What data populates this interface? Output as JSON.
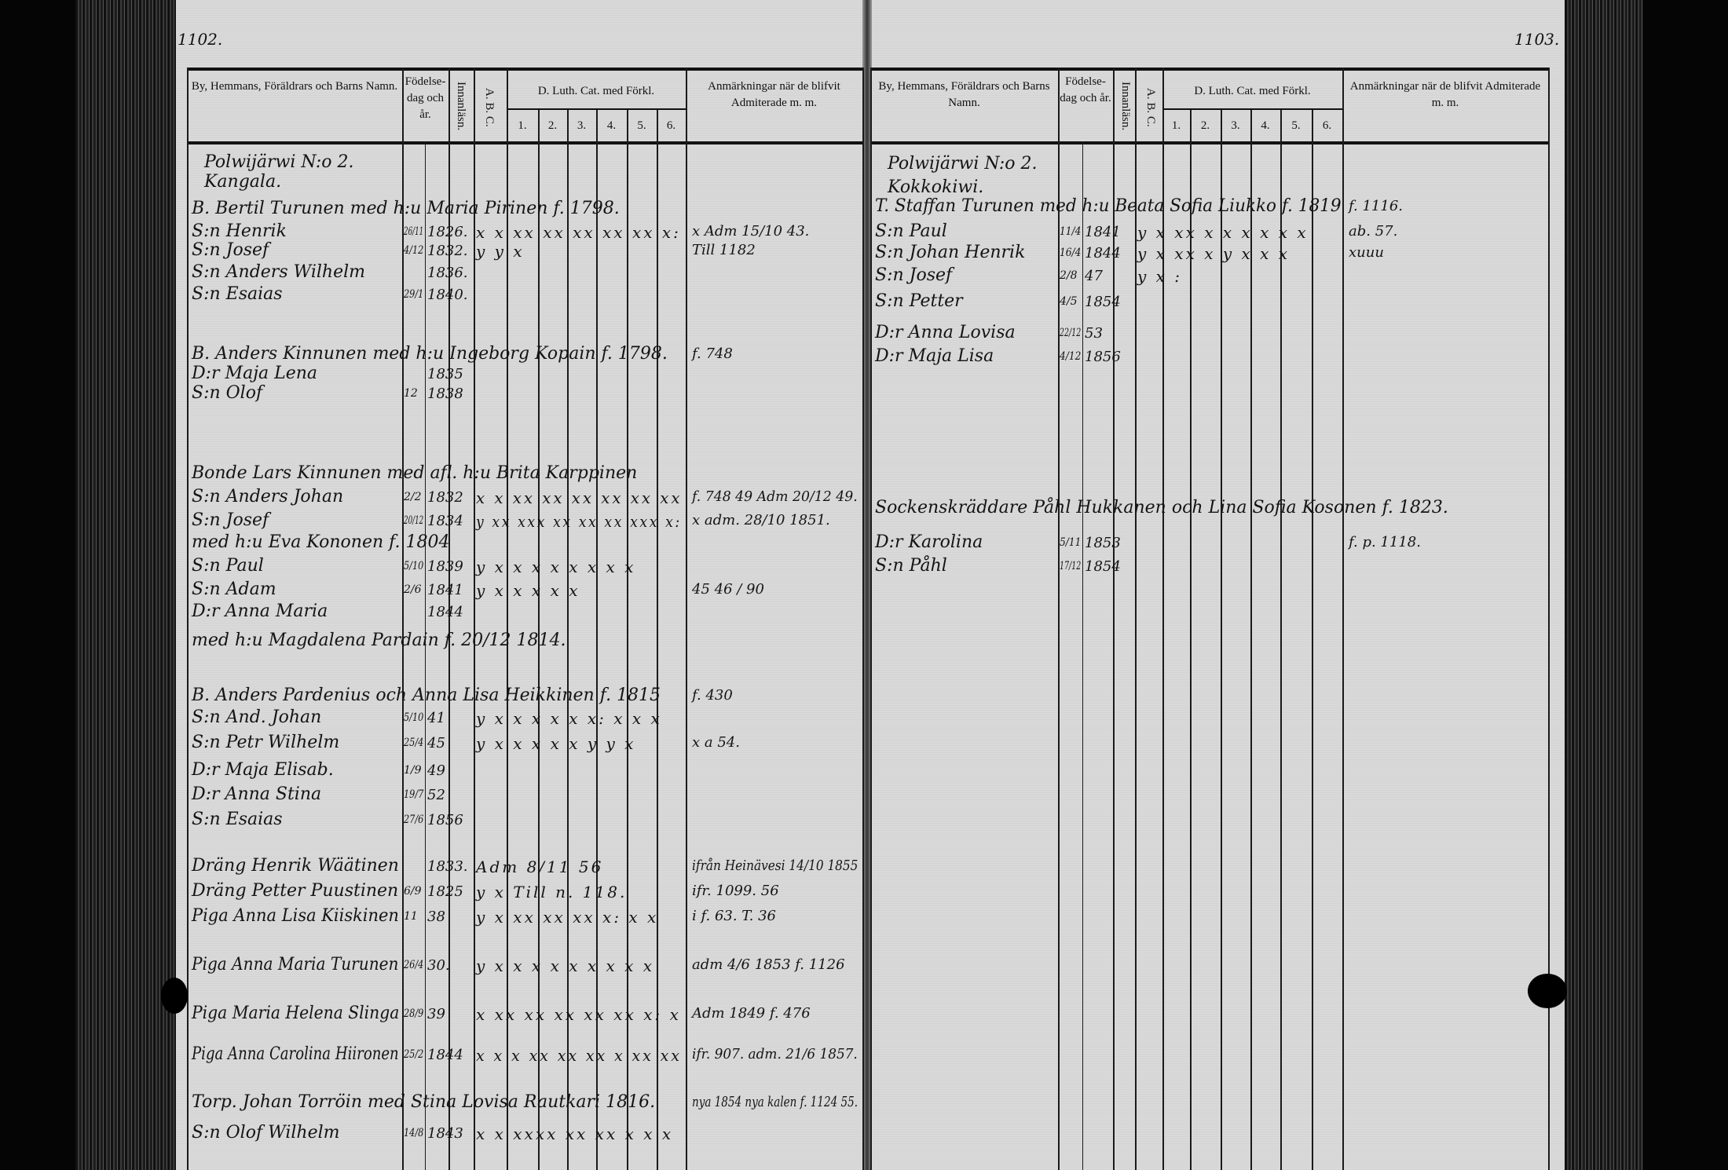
{
  "left_page": {
    "page_number": "1102.",
    "headers": {
      "name": "By, Hemmans, Föräldrars och Barns Namn.",
      "birth": "Födelse-dag och år.",
      "reading": "Innanläsn.",
      "abc": "A. B. C.",
      "catechism": "D. Luth. Cat. med Förkl.",
      "catechism_cols": [
        "1.",
        "2.",
        "3.",
        "4.",
        "5.",
        "6."
      ],
      "remarks": "Anmärkningar när de blifvit Admiterade m. m."
    },
    "entries": [
      {
        "name": "Polwijärwi N:o 2."
      },
      {
        "name": "Kangala."
      },
      {
        "name": "B. Bertil Turunen med h:u Maria Pirinen f. 1798."
      },
      {
        "name": "S:n Henrik",
        "day": "26/11",
        "year": "1826.",
        "marks": "x x xx xx xx xx xx x:",
        "remark": "x Adm 15/10 43."
      },
      {
        "name": "S:n Josef",
        "day": "4/12",
        "year": "1832.",
        "marks": "y y x",
        "remark": "Till 1182"
      },
      {
        "name": "S:n Anders Wilhelm",
        "year": "1836."
      },
      {
        "name": "S:n Esaias",
        "day": "29/1",
        "year": "1840."
      },
      {
        "name": "B. Anders Kinnunen med h:u Ingeborg Kopain f. 1798.",
        "remark": "f. 748"
      },
      {
        "name": "D:r Maja Lena",
        "year": "1835"
      },
      {
        "name": "S:n Olof",
        "day": "12",
        "year": "1838"
      },
      {
        "name": "Bonde Lars Kinnunen med afl. h:u Brita Karppinen"
      },
      {
        "name": "S:n Anders Johan",
        "day": "2/2",
        "year": "1832",
        "marks": "x x xx xx xx xx xx xx",
        "remark": "f. 748 49 Adm 20/12 49."
      },
      {
        "name": "S:n Josef",
        "day": "20/12",
        "year": "1834",
        "marks": "y xx xxx xx xx xx xxx x:",
        "remark": "x adm. 28/10 1851."
      },
      {
        "name": "med h:u Eva Kononen f. 1804"
      },
      {
        "name": "S:n Paul",
        "day": "5/10",
        "year": "1839",
        "marks": "y x x x x x x x x"
      },
      {
        "name": "S:n Adam",
        "day": "2/6",
        "year": "1841",
        "marks": "y x x x x x",
        "remark": "45 46 / 90"
      },
      {
        "name": "D:r Anna Maria",
        "year": "1844"
      },
      {
        "name": "med h:u Magdalena Pardain f. 20/12 1814."
      },
      {
        "name": "B. Anders Pardenius och Anna Lisa Heikkinen f. 1815",
        "remark": "f. 430"
      },
      {
        "name": "S:n And. Johan",
        "day": "5/10",
        "year": "41",
        "marks": "y x x x x x x: x x x"
      },
      {
        "name": "S:n Petr Wilhelm",
        "day": "25/4",
        "year": "45",
        "marks": "y x x x x x y y x",
        "remark": "x a 54."
      },
      {
        "name": "D:r Maja Elisab.",
        "day": "1/9",
        "year": "49"
      },
      {
        "name": "D:r Anna Stina",
        "day": "19/7",
        "year": "52"
      },
      {
        "name": "S:n Esaias",
        "day": "27/6",
        "year": "1856"
      },
      {
        "name": "Dräng Henrik Wäätinen",
        "year": "1833.",
        "marks": "Adm 8/11 56",
        "remark": "ifrån Heinävesi 14/10 1855"
      },
      {
        "name": "Dräng Petter Puustinen",
        "day": "6/9",
        "year": "1825",
        "marks": "y x Till n. 118.",
        "remark": "ifr. 1099. 56"
      },
      {
        "name": "Piga Anna Lisa Kiiskinen",
        "day": "11",
        "year": "38",
        "marks": "y x xx xx xx x: x x",
        "remark": "i f. 63. T. 36"
      },
      {
        "name": "Piga Anna Maria Turunen",
        "day": "26/4",
        "year": "30.",
        "marks": "y x x x x x x x x x",
        "remark": "adm 4/6 1853 f. 1126"
      },
      {
        "name": "Piga Maria Helena Slinga",
        "day": "28/9",
        "year": "39",
        "marks": "x xx xx xx xx xx x: x",
        "remark": "Adm 1849 f. 476"
      },
      {
        "name": "Piga Anna Carolina Hiironen",
        "day": "25/2",
        "year": "1844",
        "marks": "x x x xx xx xx x xx xx",
        "remark": "ifr. 907. adm. 21/6 1857."
      },
      {
        "name": "Torp. Johan Torröin med Stina Lovisa Rautkari 1816.",
        "remark": "nya 1854 nya kalen f. 1124 55."
      },
      {
        "name": "S:n Olof Wilhelm",
        "day": "14/8",
        "year": "1843",
        "marks": "x x xxxx xx xx x x x"
      }
    ]
  },
  "right_page": {
    "page_number": "1103.",
    "headers": {
      "name": "By, Hemmans, Föräldrars och Barns Namn.",
      "birth": "Födelse-dag och år.",
      "reading": "Innanläsn.",
      "abc": "A. B. C.",
      "catechism": "D. Luth. Cat. med Förkl.",
      "catechism_cols": [
        "1.",
        "2.",
        "3.",
        "4.",
        "5.",
        "6."
      ],
      "remarks": "Anmärkningar när de blifvit Admiterade m. m."
    },
    "entries": [
      {
        "name": "Polwijärwi N:o 2."
      },
      {
        "name": "Kokkokiwi."
      },
      {
        "name": "T. Staffan Turunen med h:u Beata Sofia Liukko f. 1819",
        "remark": "f. 1116."
      },
      {
        "name": "S:n Paul",
        "day": "11/4",
        "year": "1841",
        "marks": "y x xx x x x x x x",
        "remark": "ab. 57."
      },
      {
        "name": "S:n Johan Henrik",
        "day": "16/4",
        "year": "1844",
        "marks": "y x xx x y x x x",
        "remark": "xuuu"
      },
      {
        "name": "S:n Josef",
        "day": "2/8",
        "year": "47",
        "marks": "y x :"
      },
      {
        "name": "S:n Petter",
        "day": "4/5",
        "year": "1854"
      },
      {
        "name": "D:r Anna Lovisa",
        "day": "22/12",
        "year": "53"
      },
      {
        "name": "D:r Maja Lisa",
        "day": "4/12",
        "year": "1856"
      },
      {
        "name": "Sockenskräddare Påhl Hukkanen och Lina Sofia Kosonen f. 1823."
      },
      {
        "name": "D:r Karolina",
        "day": "5/11",
        "year": "1853",
        "remark": "f. p. 1118."
      },
      {
        "name": "S:n Påhl",
        "day": "17/12",
        "year": "1854"
      }
    ]
  },
  "colors": {
    "paper": "#d9d9d9",
    "ink": "#141414",
    "background": "#050505"
  }
}
